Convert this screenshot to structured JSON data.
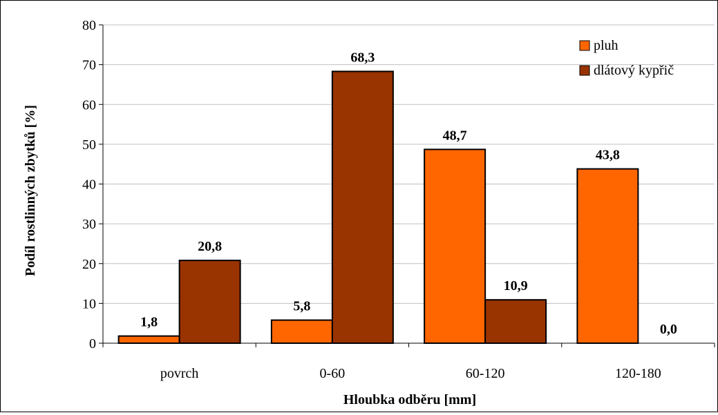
{
  "chart_data": {
    "type": "bar",
    "title": "",
    "xlabel": "Hloubka odběru [mm]",
    "ylabel": "Podíl rostlinných zbytků [%]",
    "categories": [
      "povrch",
      "0-60",
      "60-120",
      "120-180"
    ],
    "series": [
      {
        "name": "pluh",
        "color": "#FF6600",
        "values": [
          1.8,
          5.8,
          48.7,
          43.8
        ],
        "labels": [
          "1,8",
          "5,8",
          "48,7",
          "43,8"
        ]
      },
      {
        "name": "dlátový kypřič",
        "color": "#993300",
        "values": [
          20.8,
          68.3,
          10.9,
          0.0
        ],
        "labels": [
          "20,8",
          "68,3",
          "10,9",
          "0,0"
        ]
      }
    ],
    "ylim": [
      0,
      80
    ],
    "yticks": [
      0,
      10,
      20,
      30,
      40,
      50,
      60,
      70,
      80
    ],
    "grid": true,
    "legend": "top-right"
  }
}
